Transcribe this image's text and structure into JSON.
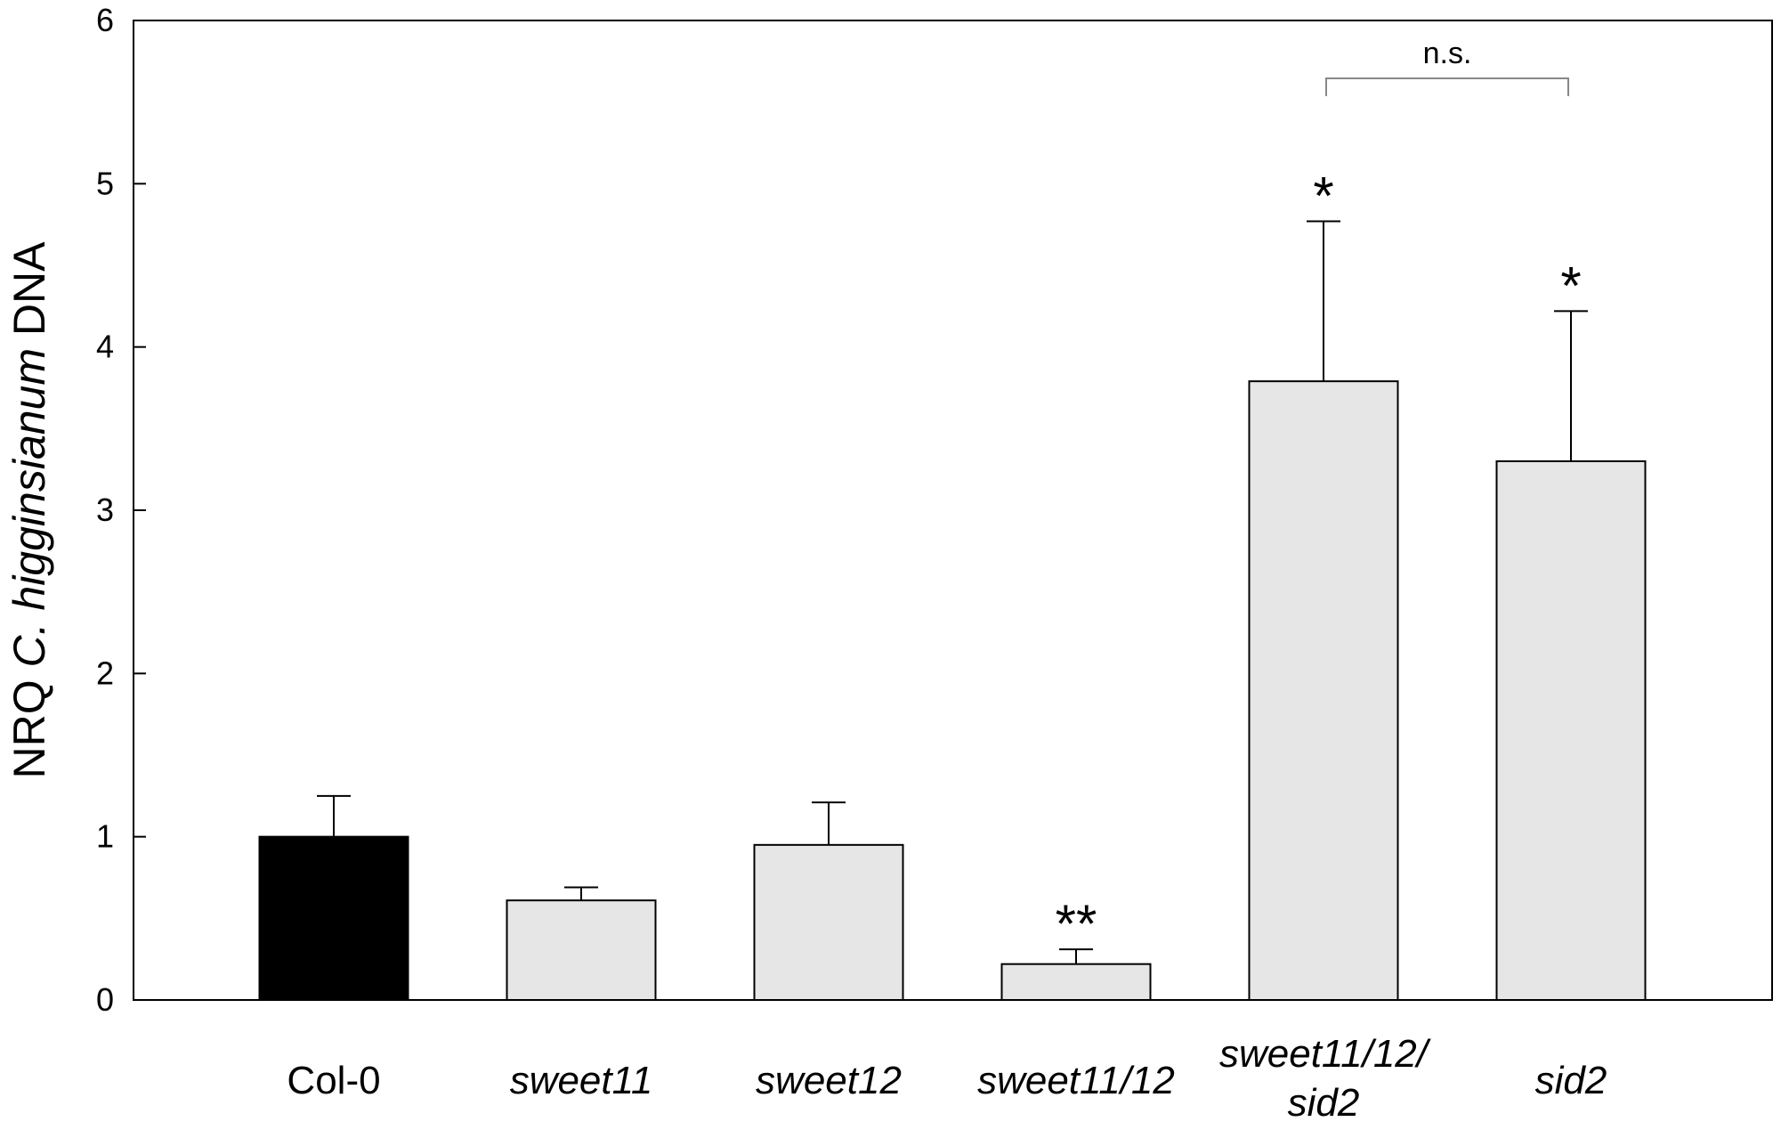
{
  "chart_data": {
    "type": "bar",
    "ylabel_parts": [
      {
        "text": "NRQ ",
        "italic": false
      },
      {
        "text": "C. higginsianum",
        "italic": true
      },
      {
        "text": " DNA",
        "italic": false
      }
    ],
    "xlabel": "",
    "ylim": [
      0,
      6
    ],
    "y_ticks": [
      0,
      1,
      2,
      3,
      4,
      5,
      6
    ],
    "grid": false,
    "legend": "none",
    "categories": [
      {
        "lines": [
          "Col-0"
        ],
        "italic": false
      },
      {
        "lines": [
          "sweet11"
        ],
        "italic": true
      },
      {
        "lines": [
          "sweet12"
        ],
        "italic": true
      },
      {
        "lines": [
          "sweet11/12"
        ],
        "italic": true
      },
      {
        "lines": [
          "sweet11/12/",
          "sid2"
        ],
        "italic": true
      },
      {
        "lines": [
          "sid2"
        ],
        "italic": true
      }
    ],
    "values": [
      1.0,
      0.61,
      0.95,
      0.22,
      3.79,
      3.3
    ],
    "errors": [
      0.25,
      0.08,
      0.26,
      0.09,
      0.98,
      0.92
    ],
    "bar_colors": [
      "#000000",
      "#e6e6e6",
      "#e6e6e6",
      "#e6e6e6",
      "#e6e6e6",
      "#e6e6e6"
    ],
    "significance": [
      "",
      "",
      "",
      "**",
      "*",
      "*"
    ],
    "comparisons": [
      {
        "from": 4,
        "to": 5,
        "label": "n.s."
      }
    ]
  }
}
